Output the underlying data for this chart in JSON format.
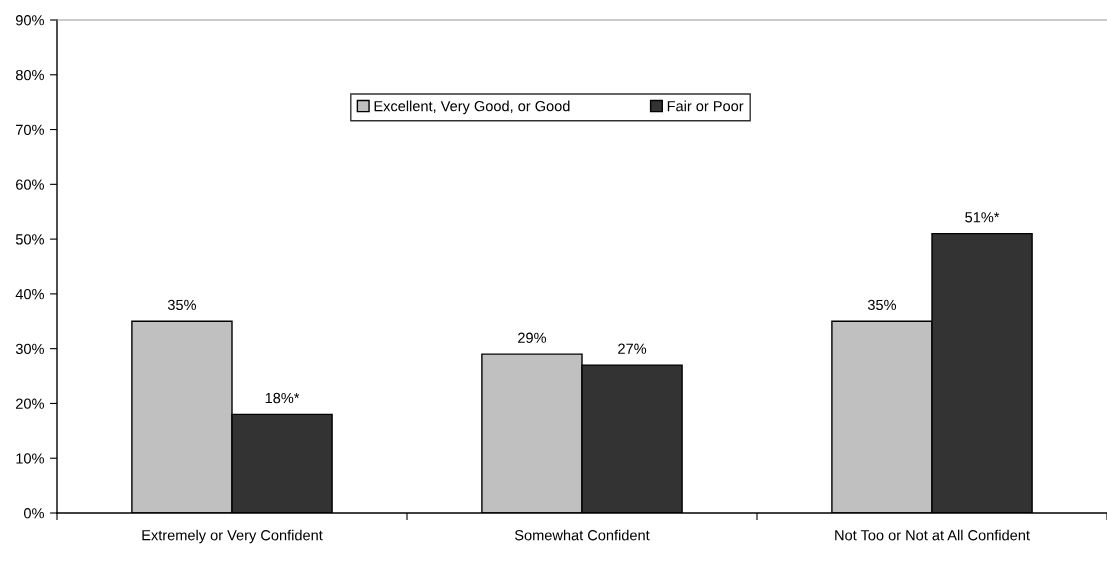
{
  "chart_data": {
    "type": "bar",
    "categories": [
      "Extremely or Very Confident",
      "Somewhat Confident",
      "Not Too or Not at All Confident"
    ],
    "series": [
      {
        "name": "Excellent, Very Good, or Good",
        "color": "#c0c0c0",
        "values": [
          35,
          29,
          35
        ],
        "value_labels": [
          "35%",
          "29%",
          "35%"
        ]
      },
      {
        "name": "Fair or Poor",
        "color": "#333333",
        "values": [
          18,
          27,
          51
        ],
        "value_labels": [
          "18%*",
          "27%",
          "51%*"
        ]
      }
    ],
    "ylim": [
      0,
      90
    ],
    "yticks": [
      {
        "value": 0,
        "label": "0%"
      },
      {
        "value": 10,
        "label": "10%"
      },
      {
        "value": 20,
        "label": "20%"
      },
      {
        "value": 30,
        "label": "30%"
      },
      {
        "value": 40,
        "label": "40%"
      },
      {
        "value": 50,
        "label": "50%"
      },
      {
        "value": 60,
        "label": "60%"
      },
      {
        "value": 70,
        "label": "70%"
      },
      {
        "value": 80,
        "label": "80%"
      },
      {
        "value": 90,
        "label": "90%"
      }
    ],
    "grid": false,
    "legend": "top"
  }
}
